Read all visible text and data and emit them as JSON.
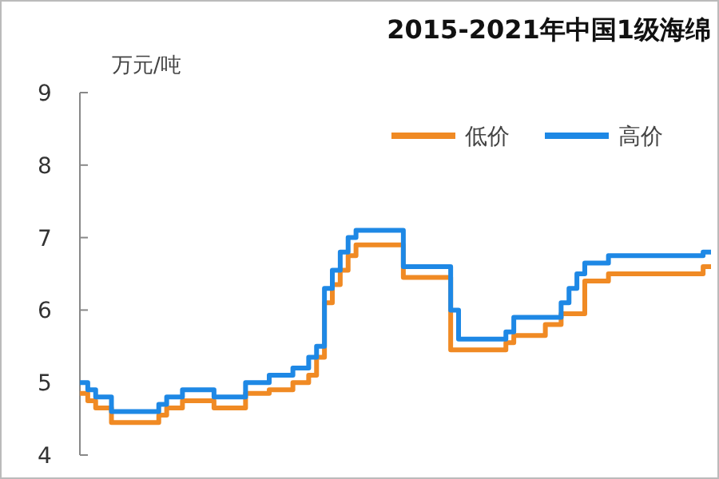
{
  "chart_data": {
    "type": "step",
    "title": "2015-2021年中国1级海绵",
    "ylabel": "万元/吨",
    "categories": [
      null,
      null,
      null,
      null,
      null,
      null,
      null,
      null,
      null,
      null,
      null,
      null,
      null,
      null,
      null,
      null,
      null,
      null,
      null,
      null,
      null,
      null,
      null,
      null,
      null,
      null,
      null,
      null,
      null,
      null,
      null,
      null,
      null,
      null,
      null,
      null,
      null,
      null,
      null,
      null,
      null,
      null,
      null,
      null,
      null,
      null,
      null,
      null,
      null,
      null,
      null,
      null,
      null,
      null,
      null,
      null,
      null,
      null,
      null,
      null,
      null,
      null,
      null,
      null,
      null,
      null,
      null,
      null,
      null,
      null,
      null,
      null,
      null,
      null,
      null,
      null,
      null,
      null,
      null,
      null,
      null
    ],
    "series": [
      {
        "name": "低价",
        "color": "#f08a24",
        "values": [
          4.85,
          4.75,
          4.65,
          4.65,
          4.45,
          4.45,
          4.45,
          4.45,
          4.45,
          4.45,
          4.55,
          4.65,
          4.65,
          4.75,
          4.75,
          4.75,
          4.75,
          4.65,
          4.65,
          4.65,
          4.65,
          4.85,
          4.85,
          4.85,
          4.9,
          4.9,
          4.9,
          5.0,
          5.0,
          5.1,
          5.35,
          6.1,
          6.35,
          6.55,
          6.75,
          6.9,
          6.9,
          6.9,
          6.9,
          6.9,
          6.9,
          6.45,
          6.45,
          6.45,
          6.45,
          6.45,
          6.45,
          5.45,
          5.45,
          5.45,
          5.45,
          5.45,
          5.45,
          5.45,
          5.55,
          5.65,
          5.65,
          5.65,
          5.65,
          5.8,
          5.8,
          5.95,
          5.95,
          5.95,
          6.4,
          6.4,
          6.4,
          6.5,
          6.5,
          6.5,
          6.5,
          6.5,
          6.5,
          6.5,
          6.5,
          6.5,
          6.5,
          6.5,
          6.5,
          6.6,
          6.6
        ]
      },
      {
        "name": "高价",
        "color": "#1e88e5",
        "values": [
          5.0,
          4.9,
          4.8,
          4.8,
          4.6,
          4.6,
          4.6,
          4.6,
          4.6,
          4.6,
          4.7,
          4.8,
          4.8,
          4.9,
          4.9,
          4.9,
          4.9,
          4.8,
          4.8,
          4.8,
          4.8,
          5.0,
          5.0,
          5.0,
          5.1,
          5.1,
          5.1,
          5.2,
          5.2,
          5.35,
          5.5,
          6.3,
          6.55,
          6.8,
          7.0,
          7.1,
          7.1,
          7.1,
          7.1,
          7.1,
          7.1,
          6.6,
          6.6,
          6.6,
          6.6,
          6.6,
          6.6,
          6.0,
          5.6,
          5.6,
          5.6,
          5.6,
          5.6,
          5.6,
          5.7,
          5.9,
          5.9,
          5.9,
          5.9,
          5.9,
          5.9,
          6.1,
          6.3,
          6.5,
          6.65,
          6.65,
          6.65,
          6.75,
          6.75,
          6.75,
          6.75,
          6.75,
          6.75,
          6.75,
          6.75,
          6.75,
          6.75,
          6.75,
          6.75,
          6.8,
          6.8
        ]
      }
    ],
    "ylim": [
      4,
      9
    ],
    "yticks": [
      4,
      5,
      6,
      7,
      8,
      9
    ],
    "legend": "top right"
  }
}
